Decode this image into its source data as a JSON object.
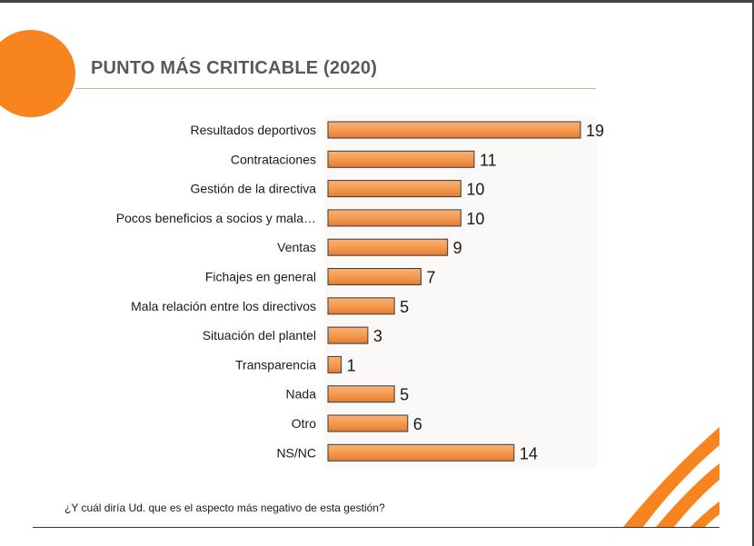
{
  "title": "PUNTO MÁS CRITICABLE (2020)",
  "footer_question": "¿Y cuál diría Ud. que es el aspecto más negativo de esta gestión?",
  "colors": {
    "accent": "#f7841e",
    "bar": "#f5a05a",
    "bar_dark": "#d9742c"
  },
  "chart_data": {
    "type": "bar",
    "orientation": "horizontal",
    "title": "PUNTO MÁS CRITICABLE (2020)",
    "xlabel": "",
    "ylabel": "",
    "xlim": [
      0,
      19
    ],
    "categories": [
      "Resultados deportivos",
      "Contrataciones",
      "Gestión de la directiva",
      "Pocos beneficios a socios y mala…",
      "Ventas",
      "Fichajes en general",
      "Mala relación entre los directivos",
      "Situación del plantel",
      "Transparencia",
      "Nada",
      "Otro",
      "NS/NC"
    ],
    "values": [
      19,
      11,
      10,
      10,
      9,
      7,
      5,
      3,
      1,
      5,
      6,
      14
    ]
  }
}
